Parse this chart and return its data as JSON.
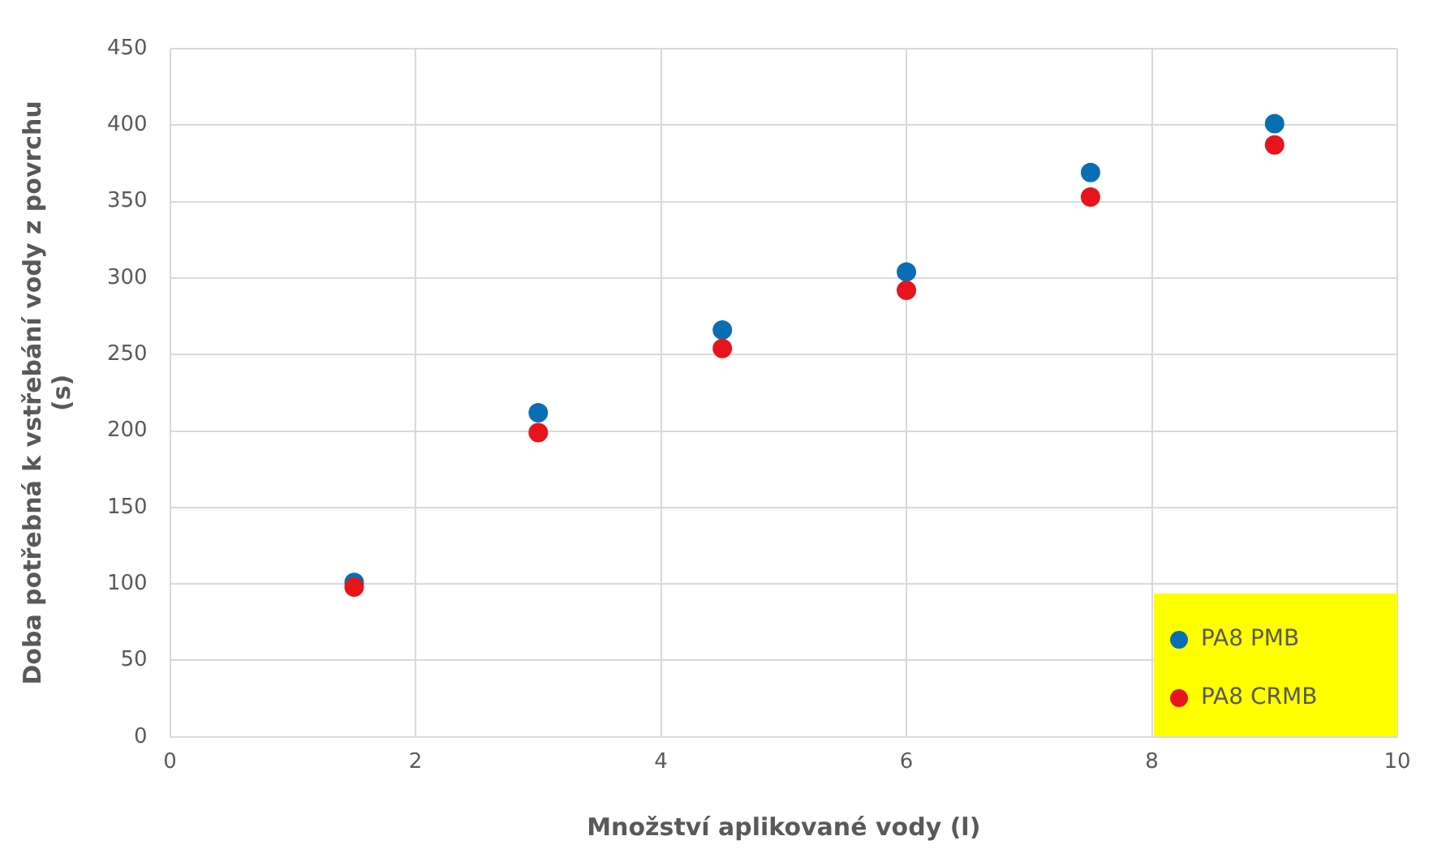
{
  "chart_data": {
    "type": "scatter",
    "xlabel": "Množství aplikované vody (l)",
    "ylabel": "Doba potřebná k vstřebání vody z povrchu (s)",
    "xlim": [
      0,
      10
    ],
    "xticks": [
      0,
      2,
      4,
      6,
      8,
      10
    ],
    "ylim": [
      0,
      450
    ],
    "yticks": [
      0,
      50,
      100,
      150,
      200,
      250,
      300,
      350,
      400,
      450
    ],
    "grid": true,
    "legend": "bottom right",
    "marker": "circle",
    "series": [
      {
        "name": "PA8 PMB",
        "color": "#0a6eb4",
        "x": [
          1.5,
          3,
          4.5,
          6,
          7.5,
          9
        ],
        "values": [
          101,
          212,
          266,
          304,
          369,
          401
        ]
      },
      {
        "name": "PA8 CRMB",
        "color": "#e8141b",
        "x": [
          1.5,
          3,
          4.5,
          6,
          7.5,
          9
        ],
        "values": [
          98,
          199,
          254,
          292,
          353,
          387
        ]
      }
    ]
  }
}
